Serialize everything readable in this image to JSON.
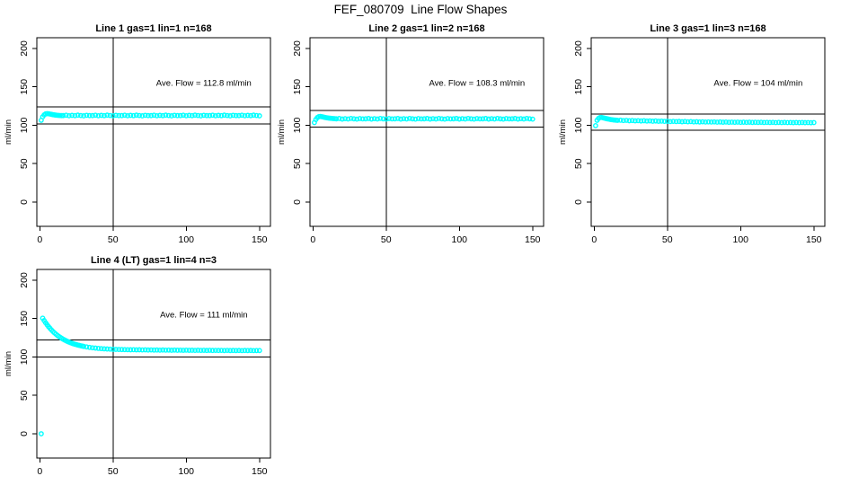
{
  "main_title": "FEF_080709  Line Flow Shapes",
  "colors": {
    "background": "#ffffff",
    "points": "#00ffff",
    "axis": "#000000",
    "text": "#000000"
  },
  "chart_data": [
    {
      "type": "scatter",
      "title": "Line 1 gas=1 lin=1 n=168",
      "ylabel": "ml/min",
      "annotation": "Ave. Flow =  112.8  ml/min",
      "annotation_xy": [
        112,
        155
      ],
      "ave_flow": 112.8,
      "xlim": [
        -2,
        157.5
      ],
      "ylim": [
        -31.6,
        214
      ],
      "xticks": [
        0,
        50,
        100,
        150
      ],
      "yticks": [
        0,
        50,
        100,
        150,
        200
      ],
      "vline_x": 50,
      "hlines": [
        124.1,
        101.5
      ],
      "grid": false,
      "points": [
        [
          1,
          106.5
        ],
        [
          2,
          111
        ],
        [
          3,
          113.5
        ],
        [
          4,
          114.8
        ],
        [
          5,
          115.2
        ],
        [
          6,
          115
        ],
        [
          7,
          114.6
        ],
        [
          8,
          114.2
        ],
        [
          9,
          113.8
        ],
        [
          10,
          113.5
        ],
        [
          11,
          113.2
        ],
        [
          12,
          113
        ],
        [
          13,
          112.8
        ],
        [
          14,
          112.7
        ],
        [
          15,
          112.6
        ],
        [
          16,
          112.6
        ],
        [
          18,
          113.1
        ],
        [
          20,
          112.4
        ],
        [
          22,
          112.9
        ],
        [
          24,
          112.5
        ],
        [
          26,
          113.2
        ],
        [
          28,
          112.7
        ],
        [
          30,
          112.3
        ],
        [
          32,
          113
        ],
        [
          34,
          112.6
        ],
        [
          36,
          112.6
        ],
        [
          38,
          113.1
        ],
        [
          40,
          112.4
        ],
        [
          42,
          112.9
        ],
        [
          44,
          112.5
        ],
        [
          46,
          113.2
        ],
        [
          48,
          112.7
        ],
        [
          50,
          112.3
        ],
        [
          52,
          113
        ],
        [
          54,
          112.6
        ],
        [
          56,
          112.6
        ],
        [
          58,
          113.1
        ],
        [
          60,
          112.4
        ],
        [
          62,
          112.9
        ],
        [
          64,
          112.5
        ],
        [
          66,
          113.2
        ],
        [
          68,
          112.7
        ],
        [
          70,
          112.3
        ],
        [
          72,
          113
        ],
        [
          74,
          112.6
        ],
        [
          76,
          112.6
        ],
        [
          78,
          113.1
        ],
        [
          80,
          112.4
        ],
        [
          82,
          112.9
        ],
        [
          84,
          112.5
        ],
        [
          86,
          113.2
        ],
        [
          88,
          112.7
        ],
        [
          90,
          112.3
        ],
        [
          92,
          113
        ],
        [
          94,
          112.6
        ],
        [
          96,
          112.6
        ],
        [
          98,
          113.1
        ],
        [
          100,
          112.4
        ],
        [
          102,
          112.9
        ],
        [
          104,
          112.5
        ],
        [
          106,
          113.2
        ],
        [
          108,
          112.7
        ],
        [
          110,
          112.3
        ],
        [
          112,
          113
        ],
        [
          114,
          112.6
        ],
        [
          116,
          112.6
        ],
        [
          118,
          113.1
        ],
        [
          120,
          112.4
        ],
        [
          122,
          112.9
        ],
        [
          124,
          112.5
        ],
        [
          126,
          113.2
        ],
        [
          128,
          112.7
        ],
        [
          130,
          112.3
        ],
        [
          132,
          113
        ],
        [
          134,
          112.6
        ],
        [
          136,
          112.6
        ],
        [
          138,
          113.1
        ],
        [
          140,
          112.4
        ],
        [
          142,
          112.9
        ],
        [
          144,
          112.5
        ],
        [
          146,
          113.2
        ],
        [
          148,
          112.7
        ],
        [
          150,
          112.3
        ]
      ]
    },
    {
      "type": "scatter",
      "title": "Line 2 gas=1 lin=2 n=168",
      "ylabel": "ml/min",
      "annotation": "Ave. Flow =  108.3  ml/min",
      "annotation_xy": [
        112,
        155
      ],
      "ave_flow": 108.3,
      "xlim": [
        -2,
        157.5
      ],
      "ylim": [
        -31.6,
        214
      ],
      "xticks": [
        0,
        50,
        100,
        150
      ],
      "yticks": [
        0,
        50,
        100,
        150,
        200
      ],
      "vline_x": 50,
      "hlines": [
        119.1,
        97.5
      ],
      "grid": false,
      "points": [
        [
          1,
          103.5
        ],
        [
          2,
          107.5
        ],
        [
          3,
          110
        ],
        [
          4,
          111.2
        ],
        [
          5,
          111.5
        ],
        [
          6,
          111.2
        ],
        [
          7,
          110.8
        ],
        [
          8,
          110.3
        ],
        [
          9,
          109.9
        ],
        [
          10,
          109.6
        ],
        [
          11,
          109.3
        ],
        [
          12,
          109.1
        ],
        [
          13,
          108.9
        ],
        [
          14,
          108.7
        ],
        [
          15,
          108.6
        ],
        [
          16,
          108.4
        ],
        [
          18,
          108.8
        ],
        [
          20,
          108.1
        ],
        [
          22,
          108.6
        ],
        [
          24,
          108.2
        ],
        [
          26,
          108.9
        ],
        [
          28,
          108.4
        ],
        [
          30,
          108
        ],
        [
          32,
          108.7
        ],
        [
          34,
          108.3
        ],
        [
          36,
          108.4
        ],
        [
          38,
          108.8
        ],
        [
          40,
          108.1
        ],
        [
          42,
          108.6
        ],
        [
          44,
          108.2
        ],
        [
          46,
          108.9
        ],
        [
          48,
          108.4
        ],
        [
          50,
          108
        ],
        [
          52,
          108.7
        ],
        [
          54,
          108.3
        ],
        [
          56,
          108.4
        ],
        [
          58,
          108.8
        ],
        [
          60,
          108.1
        ],
        [
          62,
          108.6
        ],
        [
          64,
          108.2
        ],
        [
          66,
          108.9
        ],
        [
          68,
          108.4
        ],
        [
          70,
          108
        ],
        [
          72,
          108.7
        ],
        [
          74,
          108.3
        ],
        [
          76,
          108.4
        ],
        [
          78,
          108.8
        ],
        [
          80,
          108.1
        ],
        [
          82,
          108.6
        ],
        [
          84,
          108.2
        ],
        [
          86,
          108.9
        ],
        [
          88,
          108.4
        ],
        [
          90,
          108
        ],
        [
          92,
          108.7
        ],
        [
          94,
          108.3
        ],
        [
          96,
          108.4
        ],
        [
          98,
          108.8
        ],
        [
          100,
          108.1
        ],
        [
          102,
          108.6
        ],
        [
          104,
          108.2
        ],
        [
          106,
          108.9
        ],
        [
          108,
          108.4
        ],
        [
          110,
          108
        ],
        [
          112,
          108.7
        ],
        [
          114,
          108.3
        ],
        [
          116,
          108.4
        ],
        [
          118,
          108.8
        ],
        [
          120,
          108.1
        ],
        [
          122,
          108.6
        ],
        [
          124,
          108.2
        ],
        [
          126,
          108.9
        ],
        [
          128,
          108.4
        ],
        [
          130,
          108
        ],
        [
          132,
          108.7
        ],
        [
          134,
          108.3
        ],
        [
          136,
          108.4
        ],
        [
          138,
          108.8
        ],
        [
          140,
          108.1
        ],
        [
          142,
          108.6
        ],
        [
          144,
          108.2
        ],
        [
          146,
          108.9
        ],
        [
          148,
          108.4
        ],
        [
          150,
          108
        ]
      ]
    },
    {
      "type": "scatter",
      "title": "Line 3 gas=1 lin=3 n=168",
      "ylabel": "ml/min",
      "annotation": "Ave. Flow =  104  ml/min",
      "annotation_xy": [
        112,
        155
      ],
      "ave_flow": 104,
      "xlim": [
        -2,
        157.5
      ],
      "ylim": [
        -31.6,
        214
      ],
      "xticks": [
        0,
        50,
        100,
        150
      ],
      "yticks": [
        0,
        50,
        100,
        150,
        200
      ],
      "vline_x": 50,
      "hlines": [
        114.4,
        93.6
      ],
      "grid": false,
      "points": [
        [
          1,
          99.5
        ],
        [
          2,
          106.5
        ],
        [
          3,
          109
        ],
        [
          4,
          110.1
        ],
        [
          5,
          110.2
        ],
        [
          6,
          109.8
        ],
        [
          7,
          109.3
        ],
        [
          8,
          108.8
        ],
        [
          9,
          108.4
        ],
        [
          10,
          108
        ],
        [
          11,
          107.6
        ],
        [
          12,
          107.3
        ],
        [
          13,
          107
        ],
        [
          14,
          106.8
        ],
        [
          15,
          106.6
        ],
        [
          16,
          106.4
        ],
        [
          18,
          106.6
        ],
        [
          20,
          106.1
        ],
        [
          22,
          106.4
        ],
        [
          24,
          105.9
        ],
        [
          26,
          106.2
        ],
        [
          28,
          105.8
        ],
        [
          30,
          106
        ],
        [
          32,
          105.6
        ],
        [
          34,
          105.9
        ],
        [
          36,
          105.5
        ],
        [
          38,
          105.7
        ],
        [
          40,
          105.3
        ],
        [
          42,
          105.6
        ],
        [
          44,
          105.2
        ],
        [
          46,
          105.4
        ],
        [
          48,
          105.1
        ],
        [
          50,
          105.2
        ],
        [
          52,
          104.8
        ],
        [
          54,
          105.1
        ],
        [
          56,
          104.8
        ],
        [
          58,
          105
        ],
        [
          60,
          104.6
        ],
        [
          62,
          104.9
        ],
        [
          64,
          104.5
        ],
        [
          66,
          104.8
        ],
        [
          68,
          104.4
        ],
        [
          70,
          104.6
        ],
        [
          72,
          104.3
        ],
        [
          74,
          104.5
        ],
        [
          76,
          104.2
        ],
        [
          78,
          104.4
        ],
        [
          80,
          104.2
        ],
        [
          82,
          104.4
        ],
        [
          84,
          104.1
        ],
        [
          86,
          104.3
        ],
        [
          88,
          104
        ],
        [
          90,
          104.2
        ],
        [
          92,
          103.9
        ],
        [
          94,
          104.1
        ],
        [
          96,
          103.9
        ],
        [
          98,
          104.1
        ],
        [
          100,
          103.8
        ],
        [
          102,
          104
        ],
        [
          104,
          103.8
        ],
        [
          106,
          104
        ],
        [
          108,
          103.7
        ],
        [
          110,
          103.9
        ],
        [
          112,
          103.7
        ],
        [
          114,
          103.9
        ],
        [
          116,
          103.6
        ],
        [
          118,
          103.8
        ],
        [
          120,
          103.6
        ],
        [
          122,
          103.8
        ],
        [
          124,
          103.5
        ],
        [
          126,
          103.7
        ],
        [
          128,
          103.5
        ],
        [
          130,
          103.7
        ],
        [
          132,
          103.5
        ],
        [
          134,
          103.6
        ],
        [
          136,
          103.4
        ],
        [
          138,
          103.6
        ],
        [
          140,
          103.4
        ],
        [
          142,
          103.6
        ],
        [
          144,
          103.4
        ],
        [
          146,
          103.5
        ],
        [
          148,
          103.3
        ],
        [
          150,
          103.5
        ]
      ]
    },
    {
      "type": "scatter",
      "title": "Line 4 (LT) gas=1 lin=4 n=3",
      "ylabel": "ml/min",
      "annotation": "Ave. Flow =  111  ml/min",
      "annotation_xy": [
        112,
        155
      ],
      "ave_flow": 111,
      "xlim": [
        -2,
        157.5
      ],
      "ylim": [
        -31.6,
        214
      ],
      "xticks": [
        0,
        50,
        100,
        150
      ],
      "yticks": [
        0,
        50,
        100,
        150,
        200
      ],
      "vline_x": 50,
      "hlines": [
        122.1,
        99.9
      ],
      "grid": false,
      "points": [
        [
          1,
          0
        ],
        [
          2,
          150.5
        ],
        [
          3,
          147.4
        ],
        [
          4,
          144.6
        ],
        [
          5,
          142
        ],
        [
          6,
          139.5
        ],
        [
          7,
          137.3
        ],
        [
          8,
          135.2
        ],
        [
          9,
          133.2
        ],
        [
          10,
          131.4
        ],
        [
          11,
          129.8
        ],
        [
          12,
          128.2
        ],
        [
          13,
          126.8
        ],
        [
          14,
          125.5
        ],
        [
          15,
          124.3
        ],
        [
          16,
          123.1
        ],
        [
          17,
          122.1
        ],
        [
          18,
          121.1
        ],
        [
          19,
          120.2
        ],
        [
          20,
          119.4
        ],
        [
          21,
          118.6
        ],
        [
          22,
          117.9
        ],
        [
          23,
          117.2
        ],
        [
          24,
          116.6
        ],
        [
          25,
          116.1
        ],
        [
          26,
          115.5
        ],
        [
          27,
          115.1
        ],
        [
          28,
          114.6
        ],
        [
          29,
          114.2
        ],
        [
          30,
          113.8
        ],
        [
          32,
          113.1
        ],
        [
          34,
          112.5
        ],
        [
          36,
          112
        ],
        [
          38,
          111.6
        ],
        [
          40,
          111.2
        ],
        [
          42,
          110.9
        ],
        [
          44,
          110.6
        ],
        [
          46,
          110.4
        ],
        [
          48,
          110.2
        ],
        [
          50,
          110
        ],
        [
          52,
          109.9
        ],
        [
          54,
          109.8
        ],
        [
          56,
          109.7
        ],
        [
          58,
          109.6
        ],
        [
          60,
          109.5
        ],
        [
          62,
          109.4
        ],
        [
          64,
          109.5
        ],
        [
          66,
          109.3
        ],
        [
          68,
          109.4
        ],
        [
          70,
          109.2
        ],
        [
          72,
          109.3
        ],
        [
          74,
          109.1
        ],
        [
          76,
          109.2
        ],
        [
          78,
          109
        ],
        [
          80,
          109.1
        ],
        [
          82,
          108.9
        ],
        [
          84,
          109.1
        ],
        [
          86,
          108.9
        ],
        [
          88,
          109
        ],
        [
          90,
          108.8
        ],
        [
          92,
          109
        ],
        [
          94,
          108.8
        ],
        [
          96,
          108.9
        ],
        [
          98,
          108.7
        ],
        [
          100,
          108.9
        ],
        [
          102,
          108.7
        ],
        [
          104,
          108.8
        ],
        [
          106,
          108.6
        ],
        [
          108,
          108.8
        ],
        [
          110,
          108.6
        ],
        [
          112,
          108.7
        ],
        [
          114,
          108.5
        ],
        [
          116,
          108.7
        ],
        [
          118,
          108.5
        ],
        [
          120,
          108.6
        ],
        [
          122,
          108.5
        ],
        [
          124,
          108.6
        ],
        [
          126,
          108.4
        ],
        [
          128,
          108.6
        ],
        [
          130,
          108.4
        ],
        [
          132,
          108.5
        ],
        [
          134,
          108.4
        ],
        [
          136,
          108.5
        ],
        [
          138,
          108.3
        ],
        [
          140,
          108.5
        ],
        [
          142,
          108.4
        ],
        [
          144,
          108.5
        ],
        [
          146,
          108.3
        ],
        [
          148,
          108.4
        ],
        [
          150,
          108.4
        ]
      ]
    }
  ]
}
